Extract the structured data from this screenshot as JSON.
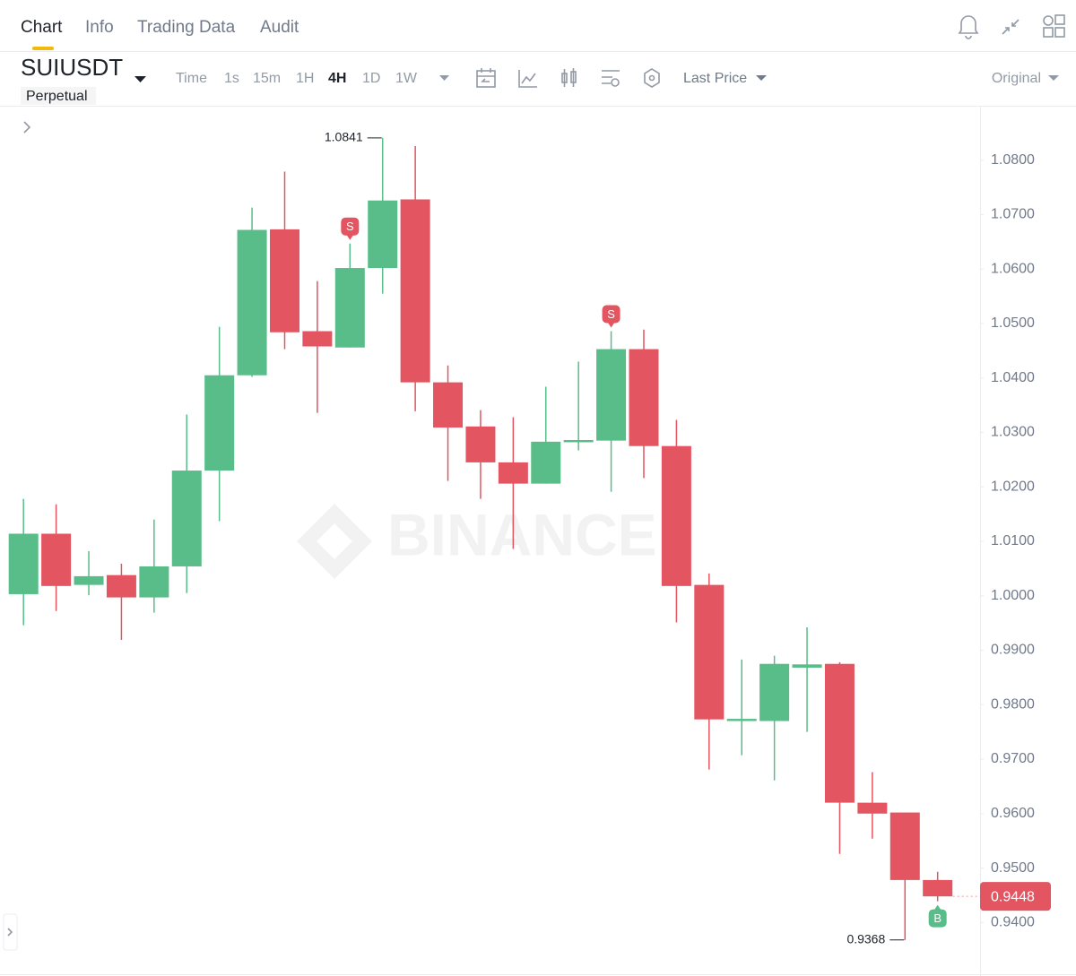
{
  "ui": {
    "tabs": [
      "Chart",
      "Info",
      "Trading Data",
      "Audit"
    ],
    "symbol": "SUIUSDT",
    "contract": "Perpetual",
    "intervals": [
      "Time",
      "1s",
      "15m",
      "1H",
      "4H",
      "1D",
      "1W"
    ],
    "price_type": "Last Price",
    "view": "Original"
  },
  "chart_data": {
    "type": "candlestick",
    "watermark": "BINANCE",
    "open": [
      1.0003,
      1.0114,
      1.002,
      1.0038,
      0.9997,
      1.0054,
      1.023,
      1.0405,
      1.0673,
      1.0486,
      1.0456,
      1.0602,
      1.0728,
      1.0392,
      1.0311,
      1.0245,
      1.0206,
      1.0282,
      1.0285,
      1.0453,
      1.0275,
      1.002,
      0.977,
      0.977,
      0.9868,
      0.9875,
      0.962,
      0.9602,
      0.9478
    ],
    "high": [
      1.0178,
      1.0168,
      1.0082,
      1.0059,
      1.014,
      1.0333,
      1.0494,
      1.0713,
      1.0779,
      1.0578,
      1.0647,
      1.0841,
      1.0826,
      1.0423,
      1.0341,
      1.0328,
      1.0384,
      1.043,
      1.0486,
      1.0489,
      1.0323,
      1.0041,
      0.9883,
      0.989,
      0.9942,
      0.9878,
      0.9676,
      0.9602,
      0.9493
    ],
    "low": [
      0.9946,
      0.9972,
      1.0001,
      0.9919,
      0.9969,
      1.0005,
      1.0137,
      1.0402,
      1.0453,
      1.0336,
      1.0456,
      1.0555,
      1.0339,
      1.0211,
      1.0178,
      1.0086,
      1.0206,
      1.0267,
      1.0191,
      1.0216,
      0.9951,
      0.9681,
      0.9707,
      0.9661,
      0.975,
      0.9526,
      0.9554,
      0.9368,
      0.9439
    ],
    "close": [
      1.0114,
      1.0018,
      1.0036,
      0.9997,
      1.0054,
      1.023,
      1.0405,
      1.0672,
      1.0484,
      1.0458,
      1.0602,
      1.0726,
      1.0392,
      1.0309,
      1.0245,
      1.0206,
      1.0283,
      1.0286,
      1.0453,
      1.0275,
      1.0018,
      0.9773,
      0.9774,
      0.9875,
      0.9874,
      0.962,
      0.96,
      0.9478,
      0.9448
    ],
    "up_color": "#58bd88",
    "down_color": "#e35561",
    "ylim": [
      0.9305,
      1.09
    ],
    "yticks": [
      {
        "value": 1.08,
        "label": "1.0800"
      },
      {
        "value": 1.07,
        "label": "1.0700"
      },
      {
        "value": 1.06,
        "label": "1.0600"
      },
      {
        "value": 1.05,
        "label": "1.0500"
      },
      {
        "value": 1.04,
        "label": "1.0400"
      },
      {
        "value": 1.03,
        "label": "1.0300"
      },
      {
        "value": 1.02,
        "label": "1.0200"
      },
      {
        "value": 1.01,
        "label": "1.0100"
      },
      {
        "value": 1.0,
        "label": "1.0000"
      },
      {
        "value": 0.99,
        "label": "0.9900"
      },
      {
        "value": 0.98,
        "label": "0.9800"
      },
      {
        "value": 0.97,
        "label": "0.9700"
      },
      {
        "value": 0.96,
        "label": "0.9600"
      },
      {
        "value": 0.95,
        "label": "0.9500"
      },
      {
        "value": 0.94,
        "label": "0.9400"
      }
    ],
    "grid": false,
    "markers": [
      {
        "index": 10,
        "text": "S",
        "side": "above",
        "color": "#e35561"
      },
      {
        "index": 18,
        "text": "S",
        "side": "above",
        "color": "#e35561"
      },
      {
        "index": 28,
        "text": "B",
        "side": "below",
        "color": "#58bd88"
      }
    ]
  }
}
